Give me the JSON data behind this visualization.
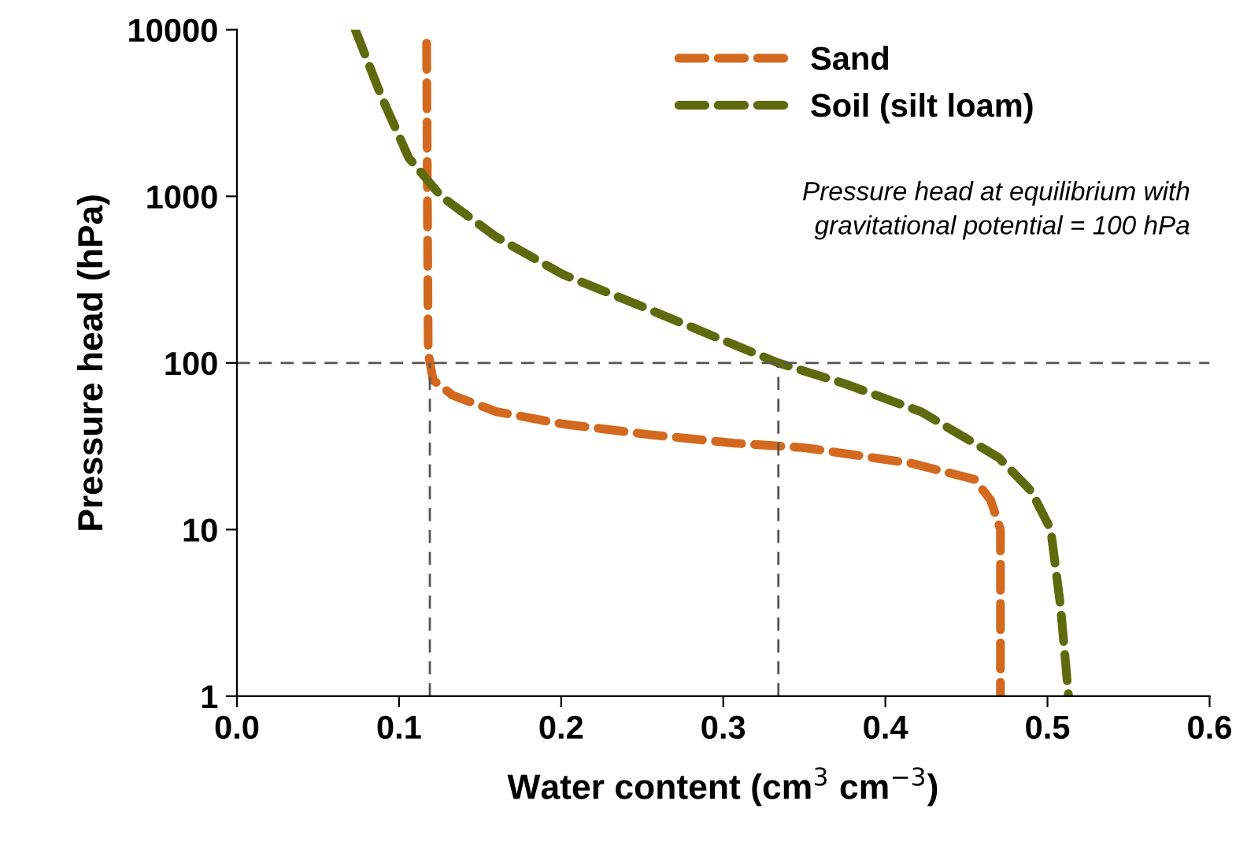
{
  "chart_data": {
    "type": "line",
    "xlabel": "Water content (cm$^{3}$ cm$^{−3}$)",
    "ylabel": "Pressure head (hPa)",
    "log": "y",
    "xlim": [
      0,
      0.6
    ],
    "ylim": [
      1,
      10000
    ],
    "xticks": [
      {
        "value": 0,
        "label": "0.0"
      },
      0.1,
      0.2,
      0.3,
      0.4,
      0.5,
      0.6
    ],
    "yticks": [
      1,
      10,
      100,
      1000,
      10000
    ],
    "grid": false,
    "legend": "top right",
    "line_style": "dashed",
    "marker": "none",
    "series": [
      {
        "name": "Sand",
        "color": "#d2691e",
        "x": [
          0.117,
          0.118,
          0.121,
          0.133,
          0.16,
          0.201,
          0.256,
          0.307,
          0.35,
          0.416,
          0.455,
          0.465,
          0.471,
          0.471
        ],
        "values": [
          8300,
          115,
          79,
          64,
          51,
          43,
          37,
          33,
          31,
          25,
          20,
          15,
          10,
          1
        ]
      },
      {
        "name": "Soil (silt loam)",
        "color": "#5e6a0e",
        "x": [
          0.073,
          0.089,
          0.106,
          0.126,
          0.16,
          0.201,
          0.249,
          0.296,
          0.334,
          0.375,
          0.422,
          0.47,
          0.49,
          0.502,
          0.508,
          0.513
        ],
        "values": [
          10000,
          4000,
          1700,
          1000,
          570,
          340,
          220,
          142,
          100,
          75,
          51,
          27,
          17,
          10,
          3.5,
          1
        ]
      }
    ],
    "ref_lines": [
      {
        "axis": "y",
        "value": 100,
        "color": "#555555",
        "line_style": "dashed"
      },
      {
        "axis": "x",
        "value": 0.119,
        "color": "#555555",
        "line_style": "dashed"
      },
      {
        "axis": "x",
        "value": 0.334,
        "color": "#555555",
        "line_style": "dashed"
      }
    ],
    "annotations": [
      "Pressure head at equilibrium with\ngravitational potential = 100 hPa"
    ]
  }
}
